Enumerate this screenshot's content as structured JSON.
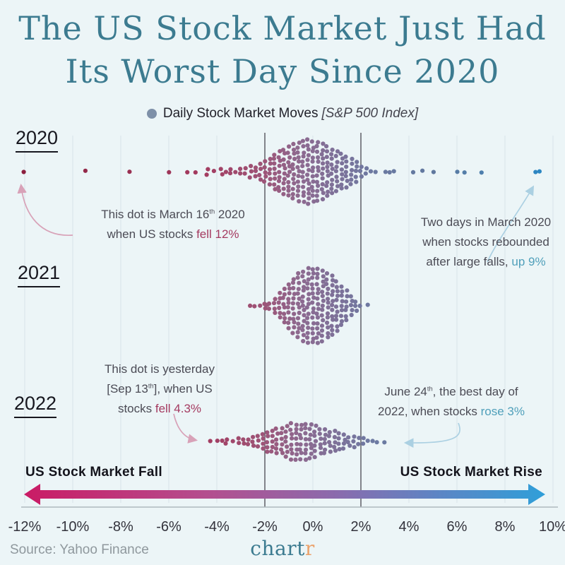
{
  "title": {
    "line1": "The US Stock Market Just Had",
    "line2": "Its Worst Day Since 2020"
  },
  "legend": {
    "label": "Daily Stock Market Moves",
    "note": "[S&P 500 Index]"
  },
  "year_labels": {
    "y2020": "2020",
    "y2021": "2021",
    "y2022": "2022"
  },
  "annotations": {
    "march16": {
      "lines": [
        [
          {
            "t": "This dot is March 16"
          },
          {
            "t": "th",
            "sup": true
          },
          {
            "t": " 2020"
          }
        ],
        [
          {
            "t": "when US stocks "
          },
          {
            "t": "fell 12%",
            "cls": "fall"
          }
        ]
      ]
    },
    "rebound": {
      "lines": [
        [
          {
            "t": "Two days in March 2020"
          }
        ],
        [
          {
            "t": "when stocks rebounded"
          }
        ],
        [
          {
            "t": "after large falls, "
          },
          {
            "t": "up 9%",
            "cls": "rise"
          }
        ]
      ]
    },
    "sep13": {
      "lines": [
        [
          {
            "t": "This dot is yesterday"
          }
        ],
        [
          {
            "t": "[Sep 13"
          },
          {
            "t": "th",
            "sup": true
          },
          {
            "t": "], when US"
          }
        ],
        [
          {
            "t": "stocks "
          },
          {
            "t": "fell 4.3%",
            "cls": "fall"
          }
        ]
      ]
    },
    "june24": {
      "lines": [
        [
          {
            "t": "June 24"
          },
          {
            "t": "th",
            "sup": true
          },
          {
            "t": ", the best day of"
          }
        ],
        [
          {
            "t": "2022, when stocks "
          },
          {
            "t": "rose 3%",
            "cls": "rise"
          }
        ]
      ]
    }
  },
  "direction_labels": {
    "fall": "US Stock Market Fall",
    "rise": "US Stock Market Rise"
  },
  "source": "Source: Yahoo Finance",
  "logo": {
    "main": "chart",
    "accent": "r"
  },
  "colors": {
    "background": "#ecf5f7",
    "title": "#3c7b90",
    "fall_text": "#a43a60",
    "rise_text": "#4f9fba",
    "legend_dot": "#7e90a8",
    "gridline": "#dfeaed",
    "gridline_dark": "#5f5f66",
    "axis_line": "#aeb9be",
    "arrow_fall_annotation": "#d8a2b8",
    "arrow_rise_annotation": "#abd0e2",
    "gradient_arrow": [
      "#ca1b65",
      "#b44e8e",
      "#8a6bad",
      "#5b86c5",
      "#2f9fd9"
    ]
  },
  "chart_data": {
    "type": "beeswarm",
    "title": "Daily Stock Market Moves [S&P 500 Index]",
    "unit": "daily % change",
    "x_axis": {
      "tick_labels": [
        "-12%",
        "-10%",
        "-8%",
        "-6%",
        "-4%",
        "-2%",
        "0%",
        "2%",
        "4%",
        "6%",
        "8%",
        "10%"
      ],
      "tick_values": [
        -12,
        -10,
        -8,
        -6,
        -4,
        -2,
        0,
        2,
        4,
        6,
        8,
        10
      ],
      "range": [
        -12,
        10
      ],
      "highlight_gridlines": [
        -2,
        2
      ]
    },
    "rows": [
      "2020",
      "2021",
      "2022"
    ],
    "highlights": [
      {
        "year": "2020",
        "date": "March 16 2020",
        "value": -12,
        "note": "worst day, fell 12%"
      },
      {
        "year": "2020",
        "date": "two days in March 2020",
        "value": 9.4,
        "note": "rebounded up 9%"
      },
      {
        "year": "2022",
        "date": "Sep 13 2022 (yesterday)",
        "value": -4.3,
        "note": "fell 4.3%"
      },
      {
        "year": "2022",
        "date": "June 24 2022",
        "value": 3,
        "note": "best day of 2022, rose 3%"
      }
    ],
    "series": [
      {
        "year": "2020",
        "bins": [
          [
            -12,
            1
          ],
          [
            -9.5,
            1
          ],
          [
            -7.6,
            1
          ],
          [
            -6,
            1
          ],
          [
            -5.2,
            1
          ],
          [
            -4.9,
            1
          ],
          [
            -4.4,
            2
          ],
          [
            -4.1,
            1
          ],
          [
            -3.8,
            2
          ],
          [
            -3.6,
            1
          ],
          [
            -3.4,
            2
          ],
          [
            -3.2,
            1
          ],
          [
            -3,
            2
          ],
          [
            -2.8,
            2
          ],
          [
            -2.6,
            3
          ],
          [
            -2.4,
            3
          ],
          [
            -2.2,
            4
          ],
          [
            -2,
            5
          ],
          [
            -1.8,
            6
          ],
          [
            -1.6,
            8
          ],
          [
            -1.4,
            9
          ],
          [
            -1.2,
            10
          ],
          [
            -1,
            11
          ],
          [
            -0.8,
            12
          ],
          [
            -0.6,
            13
          ],
          [
            -0.4,
            13
          ],
          [
            -0.2,
            14
          ],
          [
            0,
            13
          ],
          [
            0.2,
            13
          ],
          [
            0.4,
            12
          ],
          [
            0.6,
            11
          ],
          [
            0.8,
            10
          ],
          [
            1,
            9
          ],
          [
            1.2,
            8
          ],
          [
            1.4,
            7
          ],
          [
            1.6,
            6
          ],
          [
            1.8,
            5
          ],
          [
            2,
            3
          ],
          [
            2.2,
            2
          ],
          [
            2.4,
            1
          ],
          [
            2.6,
            1
          ],
          [
            3,
            1
          ],
          [
            3.2,
            1
          ],
          [
            3.4,
            1
          ],
          [
            4.2,
            1
          ],
          [
            4.6,
            1
          ],
          [
            5,
            1
          ],
          [
            6,
            1
          ],
          [
            6.3,
            1
          ],
          [
            7,
            1
          ],
          [
            9.3,
            1
          ],
          [
            9.45,
            1
          ]
        ]
      },
      {
        "year": "2021",
        "bins": [
          [
            -2.6,
            1
          ],
          [
            -2.4,
            1
          ],
          [
            -2.2,
            1
          ],
          [
            -2,
            2
          ],
          [
            -1.9,
            1
          ],
          [
            -1.8,
            2
          ],
          [
            -1.6,
            4
          ],
          [
            -1.4,
            6
          ],
          [
            -1.2,
            8
          ],
          [
            -1,
            10
          ],
          [
            -0.8,
            12
          ],
          [
            -0.6,
            14
          ],
          [
            -0.4,
            15
          ],
          [
            -0.2,
            16
          ],
          [
            0,
            16
          ],
          [
            0.2,
            16
          ],
          [
            0.4,
            15
          ],
          [
            0.6,
            14
          ],
          [
            0.8,
            13
          ],
          [
            1,
            11
          ],
          [
            1.2,
            9
          ],
          [
            1.4,
            7
          ],
          [
            1.6,
            5
          ],
          [
            1.8,
            3
          ],
          [
            2,
            1
          ],
          [
            2.3,
            1
          ]
        ]
      },
      {
        "year": "2022",
        "bins": [
          [
            -4.3,
            1
          ],
          [
            -4,
            1
          ],
          [
            -3.8,
            1
          ],
          [
            -3.6,
            2
          ],
          [
            -3.3,
            1
          ],
          [
            -3.1,
            2
          ],
          [
            -2.9,
            2
          ],
          [
            -2.7,
            2
          ],
          [
            -2.5,
            3
          ],
          [
            -2.3,
            3
          ],
          [
            -2.1,
            4
          ],
          [
            -1.9,
            5
          ],
          [
            -1.7,
            5
          ],
          [
            -1.5,
            6
          ],
          [
            -1.3,
            6
          ],
          [
            -1.1,
            7
          ],
          [
            -0.9,
            8
          ],
          [
            -0.7,
            8
          ],
          [
            -0.5,
            8
          ],
          [
            -0.3,
            8
          ],
          [
            -0.1,
            8
          ],
          [
            0.1,
            7
          ],
          [
            0.3,
            6
          ],
          [
            0.5,
            6
          ],
          [
            0.7,
            5
          ],
          [
            0.9,
            5
          ],
          [
            1.1,
            4
          ],
          [
            1.3,
            4
          ],
          [
            1.5,
            3
          ],
          [
            1.7,
            3
          ],
          [
            1.9,
            2
          ],
          [
            2.1,
            2
          ],
          [
            2.3,
            1
          ],
          [
            2.5,
            1
          ],
          [
            2.7,
            1
          ],
          [
            3,
            1
          ]
        ]
      }
    ],
    "color_scale": [
      [
        -12,
        "#8b1e3d"
      ],
      [
        -4.5,
        "#a33c60"
      ],
      [
        -2,
        "#9d5578"
      ],
      [
        -0.5,
        "#8d6a90"
      ],
      [
        1,
        "#7d7199"
      ],
      [
        2.5,
        "#6d7aa2"
      ],
      [
        5,
        "#60789e"
      ],
      [
        8,
        "#4583b4"
      ],
      [
        9.5,
        "#2b87c4"
      ]
    ]
  }
}
